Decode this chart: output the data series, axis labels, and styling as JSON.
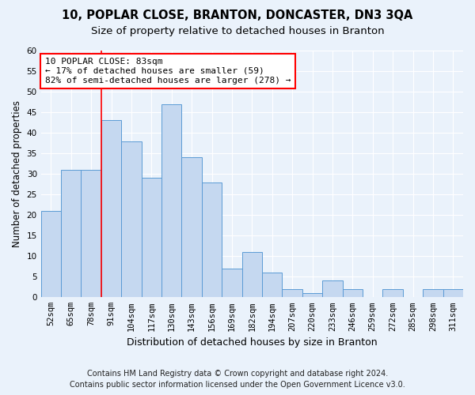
{
  "title": "10, POPLAR CLOSE, BRANTON, DONCASTER, DN3 3QA",
  "subtitle": "Size of property relative to detached houses in Branton",
  "xlabel": "Distribution of detached houses by size in Branton",
  "ylabel": "Number of detached properties",
  "categories": [
    "52sqm",
    "65sqm",
    "78sqm",
    "91sqm",
    "104sqm",
    "117sqm",
    "130sqm",
    "143sqm",
    "156sqm",
    "169sqm",
    "182sqm",
    "194sqm",
    "207sqm",
    "220sqm",
    "233sqm",
    "246sqm",
    "259sqm",
    "272sqm",
    "285sqm",
    "298sqm",
    "311sqm"
  ],
  "values": [
    21,
    31,
    31,
    43,
    38,
    29,
    47,
    34,
    28,
    7,
    11,
    6,
    2,
    1,
    4,
    2,
    0,
    2,
    0,
    2,
    2
  ],
  "bar_color": "#c5d8f0",
  "bar_edge_color": "#5b9bd5",
  "red_line_x": 2.5,
  "annotation_line1": "10 POPLAR CLOSE: 83sqm",
  "annotation_line2": "← 17% of detached houses are smaller (59)",
  "annotation_line3": "82% of semi-detached houses are larger (278) →",
  "annotation_box_color": "white",
  "annotation_box_edge": "red",
  "ylim": [
    0,
    60
  ],
  "yticks": [
    0,
    5,
    10,
    15,
    20,
    25,
    30,
    35,
    40,
    45,
    50,
    55,
    60
  ],
  "footer1": "Contains HM Land Registry data © Crown copyright and database right 2024.",
  "footer2": "Contains public sector information licensed under the Open Government Licence v3.0.",
  "background_color": "#eaf2fb",
  "plot_bg_color": "#eaf2fb",
  "grid_color": "#ffffff",
  "title_fontsize": 10.5,
  "subtitle_fontsize": 9.5,
  "xlabel_fontsize": 9,
  "ylabel_fontsize": 8.5,
  "tick_fontsize": 7.5,
  "footer_fontsize": 7,
  "annotation_fontsize": 8
}
